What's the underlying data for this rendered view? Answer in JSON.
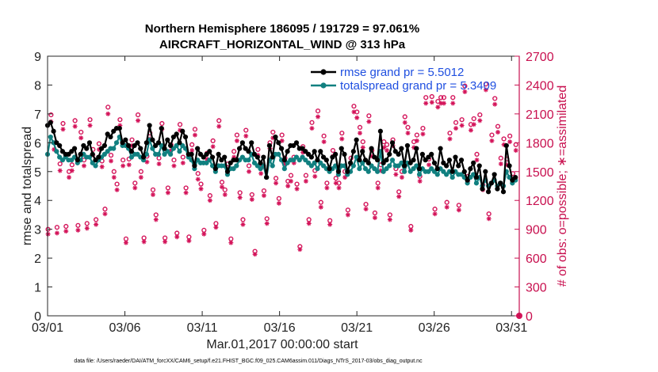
{
  "chart_data": {
    "type": "line",
    "title": [
      "Northern Hemisphere 186095 / 191729 = 97.061%",
      "AIRCRAFT_HORIZONTAL_WIND @ 313 hPa"
    ],
    "xlabel": "Mar.01,2017 00:00:00 start",
    "ylabel_left": "rmse and totalspread",
    "ylabel_right": "# of obs: o=possible; ∗=assimilated",
    "xlim": [
      1,
      31.5
    ],
    "ylim_left": [
      0,
      9
    ],
    "ylim_right": [
      0,
      2700
    ],
    "xticks": [
      1,
      6,
      11,
      16,
      21,
      26,
      31
    ],
    "xtick_labels": [
      "03/01",
      "03/06",
      "03/11",
      "03/16",
      "03/21",
      "03/26",
      "03/31"
    ],
    "yticks_left": [
      "0",
      "1",
      "2",
      "3",
      "4",
      "5",
      "6",
      "7",
      "8",
      "9"
    ],
    "yticks_right": [
      "0",
      "300",
      "600",
      "900",
      "1200",
      "1500",
      "1800",
      "2100",
      "2400",
      "2700"
    ],
    "legend": [
      "rmse grand pr = 5.5012",
      "totalspread grand pr = 5.3409"
    ],
    "footnote": "data file: /Users/raeder/DAI/ATM_forcXX/CAM6_setup/f.e21.FHIST_BGC.f09_025.CAM6assim.011/Diags_NTrS_2017-03/obs_diag_output.nc",
    "colors": {
      "rmse": "#000000",
      "spread": "#118080",
      "obs": "#d4145a"
    },
    "series": [
      {
        "name": "rmse",
        "values": [
          6.6,
          6.7,
          6.4,
          6.0,
          5.9,
          5.7,
          5.6,
          5.6,
          5.7,
          5.8,
          5.4,
          5.6,
          5.9,
          5.8,
          6.0,
          5.6,
          5.4,
          5.5,
          5.8,
          5.9,
          6.3,
          6.2,
          6.4,
          6.5,
          6.5,
          6.0,
          6.1,
          5.9,
          5.7,
          5.9,
          6.0,
          5.8,
          5.5,
          6.0,
          6.6,
          6.1,
          5.9,
          6.0,
          6.5,
          5.8,
          6.1,
          5.9,
          6.2,
          6.3,
          6.0,
          6.4,
          6.2,
          5.6,
          5.6,
          5.2,
          5.8,
          5.6,
          5.5,
          5.6,
          5.7,
          5.5,
          5.1,
          5.6,
          5.4,
          5.5,
          5.0,
          5.3,
          5.4,
          5.4,
          5.8,
          6.0,
          5.8,
          5.7,
          6.0,
          5.6,
          5.5,
          5.3,
          5.5,
          4.8,
          5.9,
          5.5,
          6.2,
          6.0,
          5.8,
          5.4,
          5.7,
          5.9,
          5.9,
          6.0,
          5.8,
          5.8,
          5.7,
          5.6,
          5.5,
          5.7,
          5.4,
          5.7,
          5.5,
          5.4,
          5.1,
          5.5,
          5.6,
          5.0,
          5.8,
          5.6,
          5.0,
          5.3,
          5.7,
          6.1,
          5.4,
          5.7,
          5.4,
          5.3,
          5.8,
          5.5,
          5.4,
          6.4,
          5.3,
          5.4,
          5.6,
          6.0,
          5.7,
          5.6,
          5.8,
          5.2,
          5.9,
          5.3,
          5.4,
          5.8,
          5.1,
          5.6,
          5.4,
          5.5,
          5.6,
          5.3,
          5.1,
          5.8,
          5.3,
          5.2,
          5.4,
          5.0,
          5.5,
          5.2,
          5.4,
          5.0,
          4.7,
          5.1,
          5.3,
          4.8,
          5.2,
          4.4,
          5.0,
          4.3,
          4.6,
          4.9,
          4.4,
          4.6,
          4.3,
          5.9,
          5.2,
          4.7,
          4.8
        ]
      },
      {
        "name": "totalspread",
        "values": [
          5.6,
          6.2,
          6.0,
          5.7,
          5.5,
          5.4,
          5.5,
          5.4,
          5.4,
          5.5,
          5.3,
          5.4,
          5.6,
          5.5,
          5.5,
          5.3,
          5.2,
          5.4,
          5.5,
          5.6,
          5.7,
          5.8,
          5.8,
          6.0,
          6.2,
          5.9,
          5.9,
          5.8,
          5.5,
          5.6,
          5.6,
          5.5,
          5.4,
          5.6,
          6.1,
          5.8,
          5.6,
          5.6,
          5.9,
          5.6,
          5.7,
          5.6,
          5.8,
          5.9,
          5.7,
          5.9,
          5.8,
          5.5,
          5.4,
          5.1,
          5.4,
          5.3,
          5.3,
          5.3,
          5.4,
          5.2,
          5.0,
          5.2,
          5.2,
          5.2,
          4.9,
          5.1,
          5.1,
          5.2,
          5.4,
          5.5,
          5.4,
          5.4,
          5.6,
          5.3,
          5.2,
          5.1,
          5.2,
          4.8,
          5.4,
          5.2,
          5.6,
          5.6,
          5.4,
          5.1,
          5.3,
          5.4,
          5.4,
          5.5,
          5.4,
          5.5,
          5.4,
          5.3,
          5.2,
          5.3,
          5.1,
          5.3,
          5.2,
          5.1,
          5.0,
          5.1,
          5.2,
          4.9,
          5.2,
          5.2,
          4.9,
          5.0,
          5.2,
          5.5,
          5.1,
          5.3,
          5.1,
          5.0,
          5.2,
          5.1,
          5.0,
          5.7,
          5.0,
          5.1,
          5.2,
          5.4,
          5.2,
          5.2,
          5.3,
          5.0,
          5.3,
          5.0,
          5.1,
          5.2,
          4.9,
          5.1,
          5.0,
          5.0,
          5.1,
          5.0,
          4.9,
          5.1,
          5.0,
          4.9,
          5.0,
          4.8,
          5.0,
          4.9,
          4.9,
          4.8,
          4.6,
          4.8,
          4.9,
          4.6,
          4.8,
          4.5,
          4.7,
          4.5,
          4.6,
          4.7,
          4.5,
          4.6,
          4.5,
          5.0,
          4.8,
          4.6,
          4.7
        ]
      },
      {
        "name": "obs_possible",
        "values": [
          900,
          2090,
          1800,
          920,
          1580,
          2000,
          930,
          1500,
          1570,
          2030,
          940,
          1910,
          1620,
          960,
          2040,
          1730,
          1000,
          1790,
          1610,
          1110,
          2170,
          1670,
          1500,
          1370,
          2040,
          1620,
          800,
          1630,
          1830,
          1380,
          2090,
          1500,
          810,
          1660,
          1900,
          1310,
          1050,
          1640,
          2000,
          810,
          1330,
          1780,
          1620,
          860,
          1990,
          1650,
          1330,
          820,
          1780,
          1940,
          1480,
          1370,
          890,
          1690,
          1250,
          1820,
          960,
          2030,
          1390,
          1310,
          1580,
          800,
          1710,
          1880,
          1280,
          1000,
          1930,
          1560,
          1260,
          670,
          1730,
          1540,
          1300,
          1010,
          1800,
          1910,
          1430,
          1220,
          1880,
          1640,
          1400,
          1460,
          1650,
          1370,
          720,
          1760,
          1460,
          1000,
          2010,
          1510,
          2130,
          1180,
          1870,
          1380,
          990,
          1720,
          1430,
          1380,
          1900,
          1500,
          1100,
          1640,
          2180,
          2120,
          1960,
          1810,
          1160,
          2080,
          1720,
          1070,
          1380,
          1570,
          1810,
          1780,
          1050,
          1830,
          1530,
          1290,
          1500,
          2070,
          1960,
          930,
          1810,
          1880,
          1450,
          1950,
          2270,
          1630,
          2280,
          1110,
          2230,
          2270,
          2270,
          1180,
          1900,
          2270,
          2010,
          1150,
          2040,
          2390,
          1450,
          1990,
          2050,
          1680,
          2090,
          1360,
          2410,
          1060,
          1880,
          2260,
          1970,
          1640,
          1840,
          1630,
          1870,
          1480,
          1780
        ]
      },
      {
        "name": "obs_assimilated",
        "values": [
          850,
          2020,
          1730,
          860,
          1510,
          1940,
          880,
          1440,
          1510,
          1970,
          890,
          1850,
          1560,
          910,
          1980,
          1670,
          950,
          1730,
          1550,
          1060,
          2100,
          1610,
          1440,
          1310,
          1980,
          1560,
          760,
          1570,
          1770,
          1330,
          2030,
          1440,
          770,
          1600,
          1840,
          1260,
          1000,
          1580,
          1940,
          770,
          1280,
          1720,
          1560,
          820,
          1930,
          1590,
          1280,
          780,
          1720,
          1880,
          1420,
          1320,
          850,
          1630,
          1200,
          1760,
          920,
          1970,
          1340,
          1260,
          1520,
          760,
          1650,
          1820,
          1230,
          950,
          1870,
          1500,
          1210,
          640,
          1670,
          1480,
          1250,
          960,
          1740,
          1850,
          1380,
          1170,
          1820,
          1580,
          1350,
          1400,
          1590,
          1320,
          690,
          1700,
          1400,
          960,
          1950,
          1450,
          2070,
          1130,
          1810,
          1330,
          950,
          1660,
          1380,
          1330,
          1840,
          1440,
          1050,
          1580,
          2120,
          2060,
          1900,
          1750,
          1110,
          2020,
          1660,
          1020,
          1330,
          1510,
          1750,
          1720,
          1000,
          1770,
          1470,
          1240,
          1440,
          2010,
          1900,
          890,
          1750,
          1820,
          1400,
          1890,
          2210,
          1570,
          2220,
          1060,
          2170,
          2210,
          2210,
          1130,
          1840,
          2210,
          1950,
          1100,
          1980,
          2330,
          1400,
          1930,
          1990,
          1620,
          2030,
          1310,
          2350,
          1010,
          1820,
          2200,
          1910,
          1580,
          1780,
          1570,
          1810,
          1420,
          1720
        ]
      }
    ]
  }
}
